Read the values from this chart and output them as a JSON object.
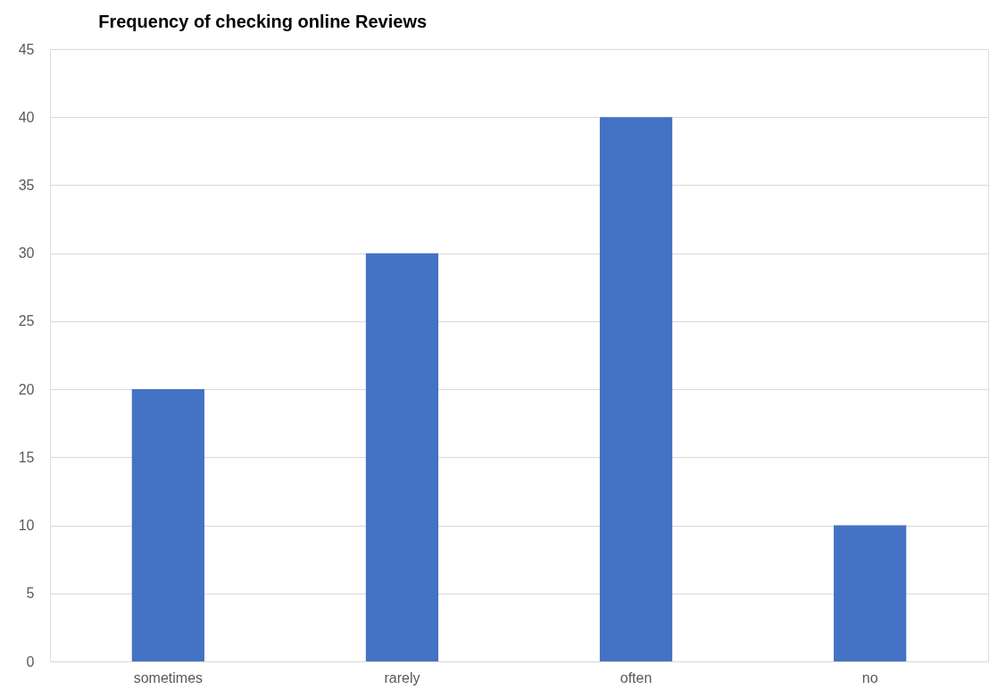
{
  "chart_data": {
    "type": "bar",
    "title": "Frequency of checking online Reviews",
    "categories": [
      "sometimes",
      "rarely",
      "often",
      "no"
    ],
    "values": [
      20,
      30,
      40,
      10
    ],
    "color": "#4472c4",
    "ylim": [
      0,
      45
    ],
    "yticks": [
      0,
      5,
      10,
      15,
      20,
      25,
      30,
      35,
      40,
      45
    ],
    "grid": "y"
  }
}
